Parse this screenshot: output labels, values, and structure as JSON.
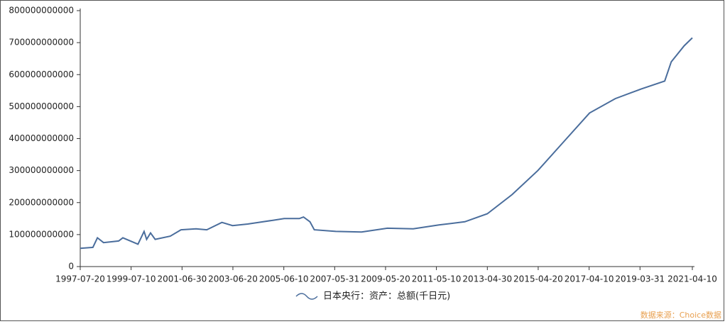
{
  "chart_data": {
    "type": "line",
    "x": [
      "1997-07-20",
      "1998-01-15",
      "1998-03-20",
      "1998-06-15",
      "1999-01-15",
      "1999-03-15",
      "1999-10-15",
      "2000-01-10",
      "2000-02-15",
      "2000-04-10",
      "2000-06-15",
      "2001-01-15",
      "2001-06-15",
      "2002-01-15",
      "2002-06-15",
      "2003-01-15",
      "2003-06-15",
      "2004-01-15",
      "2004-06-15",
      "2005-01-15",
      "2005-06-15",
      "2006-01-15",
      "2006-03-15",
      "2006-06-15",
      "2006-08-15",
      "2007-06-15",
      "2008-06-15",
      "2009-06-15",
      "2010-06-15",
      "2011-06-15",
      "2012-06-15",
      "2013-04-30",
      "2014-04-15",
      "2015-04-15",
      "2016-04-15",
      "2017-04-15",
      "2018-04-15",
      "2019-04-15",
      "2020-03-15",
      "2020-06-15",
      "2020-12-15",
      "2021-04-10"
    ],
    "series": [
      {
        "name": "日本央行：资产：总额(千日元)",
        "color": "#4a6d9c",
        "values": [
          57000000000,
          60000000000,
          90000000000,
          75000000000,
          80000000000,
          90000000000,
          70000000000,
          110000000000,
          85000000000,
          105000000000,
          85000000000,
          95000000000,
          115000000000,
          118000000000,
          115000000000,
          138000000000,
          128000000000,
          133000000000,
          138000000000,
          145000000000,
          150000000000,
          150000000000,
          155000000000,
          140000000000,
          115000000000,
          110000000000,
          108000000000,
          120000000000,
          118000000000,
          130000000000,
          140000000000,
          165000000000,
          225000000000,
          300000000000,
          390000000000,
          480000000000,
          525000000000,
          555000000000,
          580000000000,
          640000000000,
          690000000000,
          715000000000
        ]
      }
    ],
    "xlim": [
      "1997-07-20",
      "2021-04-10"
    ],
    "xticks": [
      "1997-07-20",
      "1999-07-10",
      "2001-06-30",
      "2003-06-20",
      "2005-06-10",
      "2007-05-31",
      "2009-05-20",
      "2011-05-10",
      "2013-04-30",
      "2015-04-20",
      "2017-04-10",
      "2019-03-31",
      "2021-04-10"
    ],
    "ylim": [
      0,
      800000000000
    ],
    "yticks": [
      0,
      100000000000,
      200000000000,
      300000000000,
      400000000000,
      500000000000,
      600000000000,
      700000000000,
      800000000000
    ],
    "source": "数据来源：Choice数据"
  }
}
